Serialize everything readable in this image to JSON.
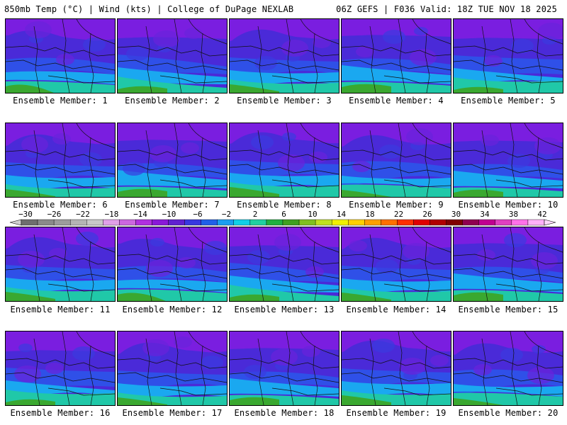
{
  "header": {
    "left": "850mb Temp (°C) | Wind (kts) | College of DuPage NEXLAB",
    "right": "06Z GEFS | F036 Valid: 18Z TUE NOV 18 2025"
  },
  "members": [
    "Ensemble Member: 1",
    "Ensemble Member: 2",
    "Ensemble Member: 3",
    "Ensemble Member: 4",
    "Ensemble Member: 5",
    "Ensemble Member: 6",
    "Ensemble Member: 7",
    "Ensemble Member: 8",
    "Ensemble Member: 9",
    "Ensemble Member: 10",
    "Ensemble Member: 11",
    "Ensemble Member: 12",
    "Ensemble Member: 13",
    "Ensemble Member: 14",
    "Ensemble Member: 15",
    "Ensemble Member: 16",
    "Ensemble Member: 17",
    "Ensemble Member: 18",
    "Ensemble Member: 19",
    "Ensemble Member: 20"
  ],
  "colorbar": {
    "tick_labels": [
      "−30",
      "−26",
      "−22",
      "−18",
      "−14",
      "−10",
      "−6",
      "−2",
      "2",
      "6",
      "10",
      "14",
      "18",
      "22",
      "26",
      "30",
      "34",
      "38",
      "42"
    ],
    "colors": [
      "#6e6e6e",
      "#8a8a8a",
      "#9c9c9c",
      "#b4b4b4",
      "#c8c8c8",
      "#e0a0e8",
      "#cc66e0",
      "#b030e0",
      "#8a18d8",
      "#6020d0",
      "#3838e0",
      "#2060e8",
      "#1a9ef0",
      "#10d0e8",
      "#20d0a0",
      "#20b040",
      "#40a020",
      "#80c020",
      "#c0e020",
      "#f0f000",
      "#ffd000",
      "#ffa000",
      "#ff7000",
      "#ff3000",
      "#e00000",
      "#b00000",
      "#800000",
      "#900050",
      "#c00090",
      "#e040c0",
      "#ff70e8",
      "#ffb0f8"
    ]
  }
}
